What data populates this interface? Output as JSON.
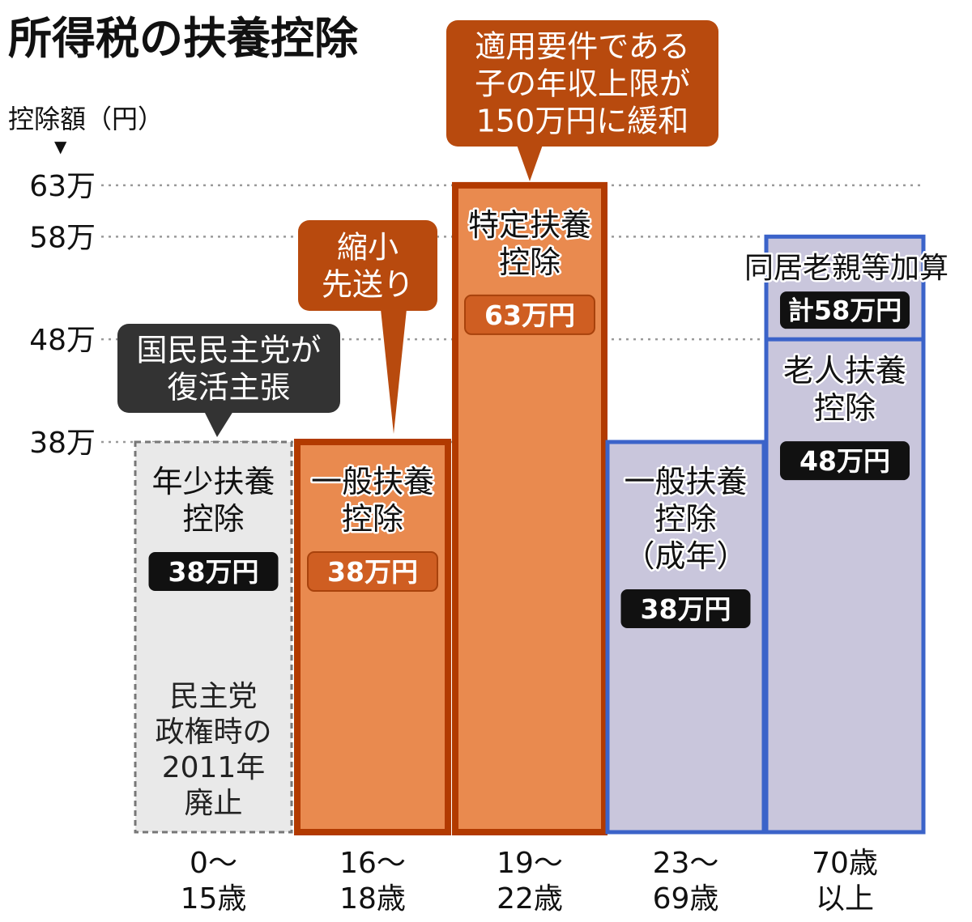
{
  "title": "所得税の扶養控除",
  "ylabel": "控除額（円）",
  "ylabel_marker": "▼",
  "y_ticks": [
    {
      "label": "63万",
      "value": 63
    },
    {
      "label": "58万",
      "value": 58
    },
    {
      "label": "48万",
      "value": 48
    },
    {
      "label": "38万",
      "value": 38
    }
  ],
  "colors": {
    "orange_fill": "#e98a4f",
    "orange_border": "#b23a00",
    "purple_fill": "#c9c6dc",
    "blue_border": "#3b63c9",
    "gray_fill": "#e9e9e9",
    "gray_border": "#777777",
    "dark_callout": "#333333",
    "brown_callout": "#b84a0e"
  },
  "chart_data": {
    "type": "bar",
    "unit": "万円",
    "ylim": [
      0,
      63
    ],
    "categories": [
      "0〜15歳",
      "16〜18歳",
      "19〜22歳",
      "23〜69歳",
      "70歳以上"
    ],
    "values": [
      38,
      38,
      63,
      38,
      58
    ],
    "bars": [
      {
        "category_lines": [
          "0〜",
          "15歳"
        ],
        "value": 38,
        "style": "gray",
        "name_lines": [
          "年少扶養",
          "控除"
        ],
        "amount": "38万円",
        "note_lines": [
          "民主党",
          "政権時の",
          "2011年",
          "廃止"
        ]
      },
      {
        "category_lines": [
          "16〜",
          "18歳"
        ],
        "value": 38,
        "style": "orange",
        "name_lines": [
          "一般扶養",
          "控除"
        ],
        "amount": "38万円"
      },
      {
        "category_lines": [
          "19〜",
          "22歳"
        ],
        "value": 63,
        "style": "orange",
        "name_lines": [
          "特定扶養",
          "控除"
        ],
        "amount": "63万円"
      },
      {
        "category_lines": [
          "23〜",
          "69歳"
        ],
        "value": 38,
        "style": "purple",
        "name_lines": [
          "一般扶養",
          "控除",
          "（成年）"
        ],
        "amount": "38万円"
      },
      {
        "category_lines": [
          "70歳",
          "以上"
        ],
        "value": 48,
        "value_total": 58,
        "style": "purple",
        "name_lines": [
          "老人扶養",
          "控除"
        ],
        "amount": "48万円",
        "extra_label": "同居老親等加算",
        "extra_amount": "計58万円"
      }
    ],
    "annotations": [
      {
        "text_lines": [
          "国民民主党が",
          "復活主張"
        ],
        "style": "dark",
        "target": "0〜15歳"
      },
      {
        "text_lines": [
          "縮小",
          "先送り"
        ],
        "style": "brown",
        "target": "16〜18歳"
      },
      {
        "text_lines": [
          "適用要件である",
          "子の年収上限が",
          "150万円に緩和"
        ],
        "style": "brown",
        "target": "19〜22歳"
      }
    ]
  }
}
